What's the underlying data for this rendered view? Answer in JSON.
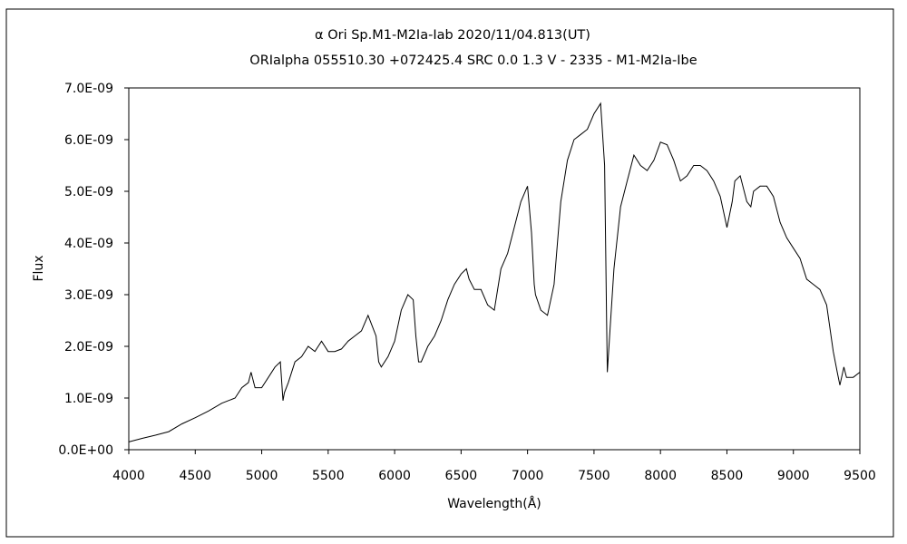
{
  "chart_data": {
    "type": "line",
    "title": "α Ori    Sp.M1-M2Ia-Iab   2020/11/04.813(UT)",
    "subtitle": "ORIalpha 055510.30 +072425.4 SRC 0.0 1.3 V - 2335 - M1-M2Ia-Ibe",
    "xlabel": "Wavelength(Å)",
    "ylabel": "Flux",
    "xlim": [
      4000,
      9500
    ],
    "ylim": [
      0,
      7e-09
    ],
    "grid": false,
    "legend": "none",
    "line_color": "#000000",
    "x_ticks": [
      4000,
      4500,
      5000,
      5500,
      6000,
      6500,
      7000,
      7500,
      8000,
      8500,
      9000,
      9500
    ],
    "x_tick_labels": [
      "4000",
      "4500",
      "5000",
      "5500",
      "6000",
      "6500",
      "7000",
      "7500",
      "8000",
      "8500",
      "9000",
      "9500"
    ],
    "y_ticks": [
      0,
      1e-09,
      2e-09,
      3e-09,
      4e-09,
      5e-09,
      6e-09,
      7e-09
    ],
    "y_tick_labels": [
      "0.0E+00",
      "1.0E-09",
      "2.0E-09",
      "3.0E-09",
      "4.0E-09",
      "5.0E-09",
      "6.0E-09",
      "7.0E-09"
    ],
    "series": [
      {
        "x": [
          4000,
          4100,
          4200,
          4300,
          4400,
          4500,
          4600,
          4700,
          4800,
          4850,
          4900,
          4920,
          4950,
          5000,
          5050,
          5100,
          5140,
          5160,
          5170,
          5200,
          5250,
          5300,
          5350,
          5400,
          5450,
          5500,
          5550,
          5600,
          5650,
          5700,
          5750,
          5800,
          5830,
          5860,
          5880,
          5900,
          5950,
          6000,
          6050,
          6100,
          6140,
          6160,
          6180,
          6200,
          6250,
          6300,
          6350,
          6400,
          6450,
          6500,
          6540,
          6560,
          6600,
          6650,
          6700,
          6750,
          6800,
          6850,
          6900,
          6950,
          7000,
          7030,
          7050,
          7060,
          7100,
          7150,
          7200,
          7250,
          7300,
          7350,
          7400,
          7450,
          7500,
          7550,
          7580,
          7595,
          7600,
          7620,
          7650,
          7700,
          7750,
          7800,
          7850,
          7900,
          7950,
          8000,
          8050,
          8100,
          8150,
          8200,
          8250,
          8300,
          8350,
          8400,
          8450,
          8500,
          8540,
          8560,
          8600,
          8650,
          8680,
          8700,
          8750,
          8800,
          8850,
          8900,
          8950,
          9000,
          9050,
          9100,
          9150,
          9200,
          9250,
          9300,
          9330,
          9350,
          9380,
          9400,
          9450,
          9500
        ],
        "y": [
          1.5e-10,
          2.2e-10,
          2.8e-10,
          3.5e-10,
          5e-10,
          6.2e-10,
          7.5e-10,
          9e-10,
          1e-09,
          1.2e-09,
          1.3e-09,
          1.5e-09,
          1.2e-09,
          1.2e-09,
          1.4e-09,
          1.6e-09,
          1.7e-09,
          9.5e-10,
          1.1e-09,
          1.3e-09,
          1.7e-09,
          1.8e-09,
          2e-09,
          1.9e-09,
          2.1e-09,
          1.9e-09,
          1.9e-09,
          1.95e-09,
          2.1e-09,
          2.2e-09,
          2.3e-09,
          2.6e-09,
          2.4e-09,
          2.2e-09,
          1.7e-09,
          1.6e-09,
          1.8e-09,
          2.1e-09,
          2.7e-09,
          3e-09,
          2.9e-09,
          2.2e-09,
          1.7e-09,
          1.7e-09,
          2e-09,
          2.2e-09,
          2.5e-09,
          2.9e-09,
          3.2e-09,
          3.4e-09,
          3.5e-09,
          3.3e-09,
          3.1e-09,
          3.1e-09,
          2.8e-09,
          2.7e-09,
          3.5e-09,
          3.8e-09,
          4.3e-09,
          4.8e-09,
          5.1e-09,
          4.2e-09,
          3.2e-09,
          3e-09,
          2.7e-09,
          2.6e-09,
          3.2e-09,
          4.8e-09,
          5.6e-09,
          6e-09,
          6.1e-09,
          6.2e-09,
          6.5e-09,
          6.7e-09,
          5.5e-09,
          2.5e-09,
          1.5e-09,
          2.3e-09,
          3.5e-09,
          4.7e-09,
          5.2e-09,
          5.7e-09,
          5.5e-09,
          5.4e-09,
          5.6e-09,
          5.95e-09,
          5.9e-09,
          5.6e-09,
          5.2e-09,
          5.3e-09,
          5.5e-09,
          5.5e-09,
          5.4e-09,
          5.2e-09,
          4.9e-09,
          4.3e-09,
          4.8e-09,
          5.2e-09,
          5.3e-09,
          4.8e-09,
          4.7e-09,
          5e-09,
          5.1e-09,
          5.1e-09,
          4.9e-09,
          4.4e-09,
          4.1e-09,
          3.9e-09,
          3.7e-09,
          3.3e-09,
          3.2e-09,
          3.1e-09,
          2.8e-09,
          1.9e-09,
          1.5e-09,
          1.25e-09,
          1.6e-09,
          1.4e-09,
          1.4e-09,
          1.5e-09
        ]
      }
    ]
  }
}
